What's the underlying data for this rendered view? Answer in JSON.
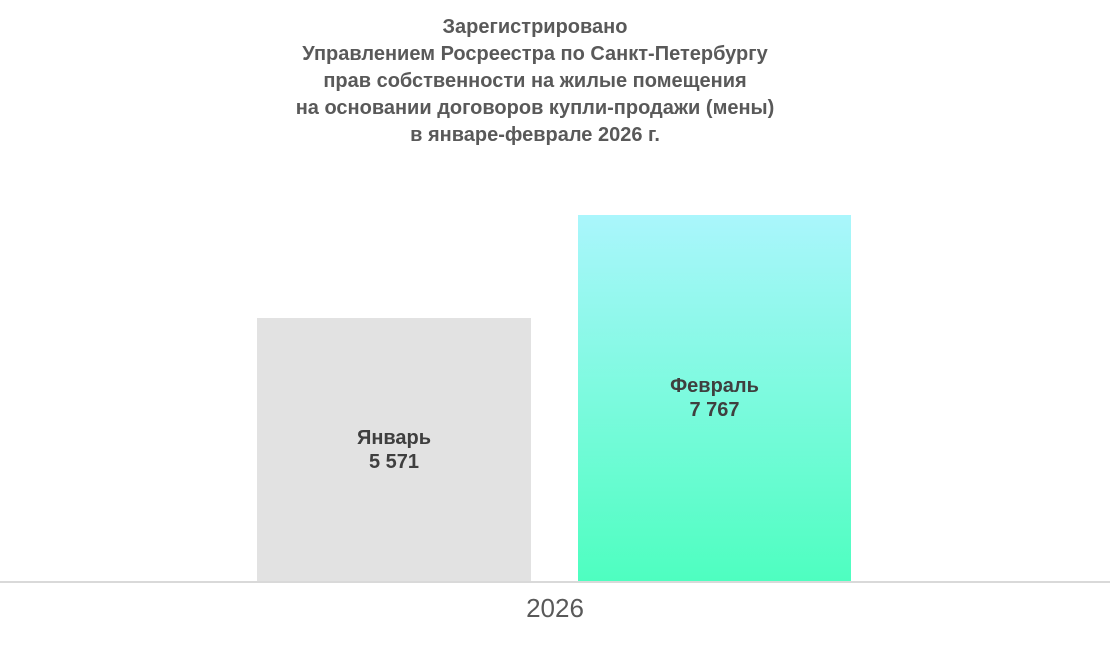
{
  "title_lines": [
    "Зарегистрировано",
    "Управлением Росреестра по Санкт-Петербургу",
    "прав собственности на жилые помещения",
    "на основании договоров купли-продажи (мены)",
    "в январе-феврале 2026 г."
  ],
  "chart_data": {
    "type": "bar",
    "categories": [
      "Январь",
      "Февраль"
    ],
    "values": [
      5571,
      7767
    ],
    "value_labels": [
      "5 571",
      "7 767"
    ],
    "title": "Зарегистрировано Управлением Росреестра по Санкт-Петербургу прав собственности на жилые помещения на основании договоров купли-продажи (мены) в январе-феврале 2026 г.",
    "xlabel": "2026",
    "ylabel": "",
    "ylim": [
      0,
      7767
    ],
    "grid": false,
    "legend": "none",
    "bar_labels_position": "inside-center",
    "bar_fills": [
      {
        "type": "solid",
        "color": "#e2e2e2"
      },
      {
        "type": "gradient",
        "from": "#aaf6fc",
        "to": "#4efec0"
      }
    ]
  },
  "colors": {
    "background": "#ffffff",
    "title_text": "#595959",
    "bar_label_text": "#3f3f3f",
    "axis_line": "#d9d9d9",
    "axis_label_text": "#595959"
  }
}
